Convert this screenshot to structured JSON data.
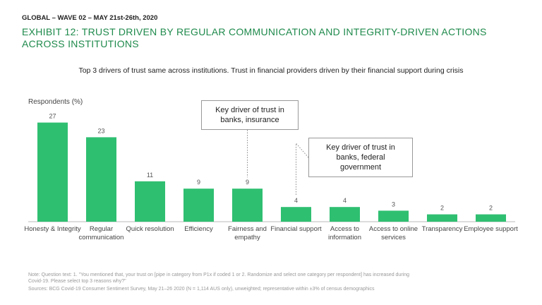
{
  "header": {
    "wave": "GLOBAL – WAVE 02 – MAY 21st-26th, 2020",
    "exhibit": "EXHIBIT 12: TRUST DRIVEN BY REGULAR COMMUNICATION AND INTEGRITY-DRIVEN ACTIONS ACROSS INSTITUTIONS"
  },
  "chart_data": {
    "type": "bar",
    "title": "Top 3 drivers of trust same across institutions. Trust in financial providers driven by their financial support during crisis",
    "y_label": "Respondents (%)",
    "categories": [
      "Honesty & Integrity",
      "Regular communication",
      "Quick resolution",
      "Efficiency",
      "Fairness and empathy",
      "Financial support",
      "Access to information",
      "Access to online services",
      "Transparency",
      "Employee support"
    ],
    "values": [
      27,
      23,
      11,
      9,
      9,
      4,
      4,
      3,
      2,
      2
    ],
    "color": "#2fbf71",
    "annotations": [
      {
        "text": "Key driver of trust in banks, insurance",
        "category": 4
      },
      {
        "text": "Key driver of trust in banks, federal government",
        "category": 5
      }
    ]
  },
  "footer": {
    "note": "Note: Question text: 1. \"You mentioned that, your trust on [pipe in category from P1x if coded 1 or 2. Randomize and select one category per respondent] has increased during Covid-19. Please select top 3 reasons why?\"",
    "sources": "Sources: BCG Covid-19 Consumer Sentiment Survey, May 21–26 2020 (N = 1,114 AUS only), unweighted; representative within ±3% of census demographics"
  }
}
